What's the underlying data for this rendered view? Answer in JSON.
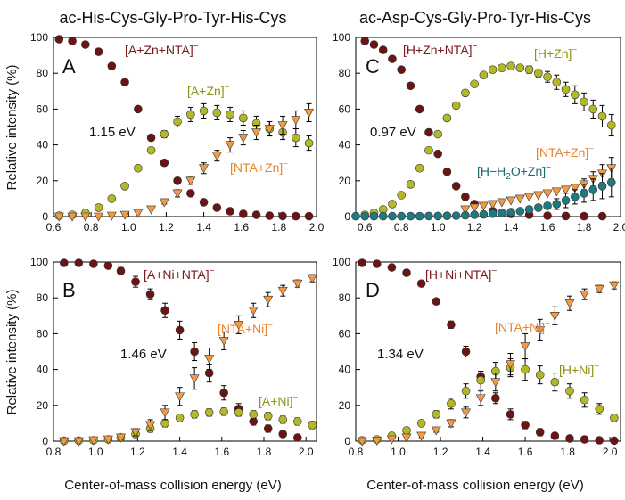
{
  "colors": {
    "series_a": "#6b1414",
    "series_b": "#b3b827",
    "series_c": "#f39a42",
    "series_d": "#1f7a80",
    "label_a": "#7a1818",
    "label_b": "#8c9212",
    "label_c": "#e8852c",
    "label_d": "#1a6a70"
  },
  "column_titles": [
    "ac-His-Cys-Gly-Pro-Tyr-His-Cys",
    "ac-Asp-Cys-Gly-Pro-Tyr-His-Cys"
  ],
  "shared_ylabel": "Relative intensity (%)",
  "shared_xlabel": "Center-of-mass collision energy (eV)",
  "chart_data": [
    {
      "type": "scatter",
      "panel_label": "A",
      "threshold_label": "1.15 eV",
      "xlim": [
        0.6,
        2.0
      ],
      "xticks": [
        "0.6",
        "0.8",
        "1.0",
        "1.2",
        "1.4",
        "1.6",
        "1.8",
        "2.0"
      ],
      "ylim": [
        0,
        100
      ],
      "yticks": [
        "0",
        "20",
        "40",
        "60",
        "80",
        "100"
      ],
      "series": [
        {
          "name": "[A+Zn+NTA]",
          "charge": "−",
          "marker": "circle",
          "color_key": "series_a",
          "x": [
            0.63,
            0.7,
            0.77,
            0.84,
            0.91,
            0.98,
            1.05,
            1.12,
            1.19,
            1.26,
            1.33,
            1.4,
            1.47,
            1.54,
            1.61,
            1.68,
            1.75,
            1.82,
            1.89,
            1.96
          ],
          "y": [
            99,
            98,
            96,
            92,
            84,
            75,
            60,
            44,
            30,
            20,
            13,
            8,
            5,
            3,
            1.5,
            1,
            0.5,
            0.3,
            0.2,
            0.2
          ],
          "err": [
            0,
            0,
            0,
            0,
            0,
            0,
            0,
            0,
            0,
            0,
            0,
            0,
            0,
            0,
            0,
            0,
            0,
            0,
            0,
            0
          ]
        },
        {
          "name": "[A+Zn]",
          "charge": "−",
          "marker": "circle",
          "color_key": "series_b",
          "x": [
            0.63,
            0.7,
            0.77,
            0.84,
            0.91,
            0.98,
            1.05,
            1.12,
            1.19,
            1.26,
            1.33,
            1.4,
            1.47,
            1.54,
            1.61,
            1.68,
            1.75,
            1.82,
            1.89,
            1.96
          ],
          "y": [
            0.5,
            1,
            2,
            5,
            10,
            17,
            27,
            37,
            46,
            53,
            57,
            59,
            58,
            57,
            55,
            52,
            49,
            47,
            44,
            41
          ],
          "err": [
            0,
            0,
            0,
            0,
            0,
            0,
            0,
            0,
            2,
            3,
            4,
            4,
            4,
            4,
            4,
            4,
            4,
            4,
            5,
            4
          ]
        },
        {
          "name": "[NTA+Zn]",
          "charge": "−",
          "marker": "triangle",
          "color_key": "series_c",
          "x": [
            0.63,
            0.7,
            0.77,
            0.84,
            0.91,
            0.98,
            1.05,
            1.12,
            1.19,
            1.26,
            1.33,
            1.4,
            1.47,
            1.54,
            1.61,
            1.68,
            1.75,
            1.82,
            1.89,
            1.96
          ],
          "y": [
            0,
            0,
            0,
            0,
            0.5,
            1,
            2,
            4,
            8,
            13,
            20,
            27,
            34,
            40,
            44,
            47,
            49,
            51,
            54,
            58
          ],
          "err": [
            0,
            0,
            0,
            0,
            0,
            0,
            0,
            0,
            1,
            2,
            2,
            3,
            3,
            4,
            4,
            4,
            4,
            5,
            5,
            5
          ]
        }
      ],
      "annotations": [
        {
          "text": "[A+Zn+NTA]",
          "sup": "−",
          "color_key": "label_a"
        },
        {
          "text": "[A+Zn]",
          "sup": "−",
          "color_key": "label_b"
        },
        {
          "text": "[NTA+Zn]",
          "sup": "−",
          "color_key": "label_c"
        }
      ]
    },
    {
      "type": "scatter",
      "panel_label": "C",
      "threshold_label": "0.97 eV",
      "xlim": [
        0.55,
        2.0
      ],
      "xticks": [
        "0.6",
        "0.8",
        "1.0",
        "1.2",
        "1.4",
        "1.6",
        "1.8",
        "2.0"
      ],
      "ylim": [
        0,
        100
      ],
      "yticks": [
        "0",
        "20",
        "40",
        "60",
        "80",
        "100"
      ],
      "series": [
        {
          "name": "[H+Zn+NTA]",
          "charge": "−",
          "marker": "circle",
          "color_key": "series_a",
          "x": [
            0.6,
            0.65,
            0.7,
            0.75,
            0.8,
            0.85,
            0.9,
            0.95,
            1.0,
            1.05,
            1.1,
            1.15,
            1.2,
            1.3,
            1.4,
            1.5,
            1.6,
            1.7,
            1.8,
            1.9
          ],
          "y": [
            98,
            96,
            93,
            88,
            82,
            73,
            60,
            47,
            35,
            25,
            17,
            11,
            7,
            3,
            1.5,
            1,
            0.5,
            0.3,
            0.2,
            0.2
          ],
          "err": [
            0,
            0,
            0,
            0,
            0,
            0,
            0,
            0,
            0,
            0,
            0,
            0,
            0,
            0,
            0,
            0,
            0,
            0,
            0,
            0
          ]
        },
        {
          "name": "[H+Zn]",
          "charge": "−",
          "marker": "circle",
          "color_key": "series_b",
          "x": [
            0.6,
            0.65,
            0.7,
            0.75,
            0.8,
            0.85,
            0.9,
            0.95,
            1.0,
            1.05,
            1.1,
            1.15,
            1.2,
            1.25,
            1.3,
            1.35,
            1.4,
            1.45,
            1.5,
            1.55,
            1.6,
            1.65,
            1.7,
            1.75,
            1.8,
            1.85,
            1.9,
            1.95
          ],
          "y": [
            1,
            2,
            4,
            7,
            12,
            18,
            27,
            37,
            46,
            55,
            62,
            69,
            74,
            79,
            82,
            83,
            84,
            83,
            82,
            80,
            78,
            75,
            71,
            68,
            64,
            60,
            56,
            51
          ],
          "err": [
            0,
            0,
            0,
            0,
            0,
            0,
            0,
            0,
            0,
            0,
            0,
            0,
            0,
            0,
            0,
            0,
            0,
            0,
            2,
            2,
            3,
            4,
            4,
            5,
            5,
            5,
            6,
            6
          ]
        },
        {
          "name": "[NTA+Zn]",
          "charge": "−",
          "marker": "triangle",
          "color_key": "series_c",
          "x": [
            1.15,
            1.2,
            1.25,
            1.3,
            1.35,
            1.4,
            1.45,
            1.5,
            1.55,
            1.6,
            1.65,
            1.7,
            1.75,
            1.8,
            1.85,
            1.9,
            1.95
          ],
          "y": [
            4,
            5,
            6,
            7,
            8,
            9,
            10,
            11,
            12,
            13,
            14,
            15,
            16,
            18,
            21,
            24,
            27
          ],
          "err": [
            0,
            0,
            0,
            0,
            0,
            0,
            0,
            0,
            0,
            0,
            0,
            0,
            0,
            3,
            4,
            5,
            6
          ]
        },
        {
          "name": "[H−H2O+Zn]",
          "charge": "−",
          "marker": "circle",
          "color_key": "series_d",
          "x": [
            0.55,
            0.6,
            0.65,
            0.7,
            0.75,
            0.8,
            0.85,
            0.9,
            0.95,
            1.0,
            1.05,
            1.1,
            1.15,
            1.2,
            1.25,
            1.3,
            1.35,
            1.4,
            1.45,
            1.5,
            1.55,
            1.6,
            1.65,
            1.7,
            1.75,
            1.8,
            1.85,
            1.9,
            1.95
          ],
          "y": [
            0.2,
            0.2,
            0.2,
            0.2,
            0.2,
            0.2,
            0.2,
            0.2,
            0.3,
            0.3,
            0.4,
            0.5,
            0.7,
            1,
            1.2,
            1.6,
            2,
            2.5,
            3,
            4,
            5,
            6,
            7,
            9,
            11,
            13,
            15,
            17,
            19
          ],
          "err": [
            0,
            0,
            0,
            0,
            0,
            0,
            0,
            0,
            0,
            0,
            0,
            0,
            0,
            0,
            0,
            0,
            0,
            0,
            0,
            0,
            0,
            0,
            3,
            4,
            4,
            5,
            6,
            7,
            8
          ]
        }
      ],
      "annotations": [
        {
          "text": "[H+Zn+NTA]",
          "sup": "−",
          "color_key": "label_a"
        },
        {
          "text": "[H+Zn]",
          "sup": "−",
          "color_key": "label_b"
        },
        {
          "text": "[NTA+Zn]",
          "sup": "−",
          "color_key": "label_c"
        },
        {
          "text": "[H−H",
          "sub": "2",
          "tail": "O+Zn]",
          "sup": "−",
          "color_key": "label_d"
        }
      ]
    },
    {
      "type": "scatter",
      "panel_label": "B",
      "threshold_label": "1.46 eV",
      "xlim": [
        0.8,
        2.05
      ],
      "xticks": [
        "0.8",
        "1.0",
        "1.2",
        "1.4",
        "1.6",
        "1.8",
        "2.0"
      ],
      "ylim": [
        0,
        100
      ],
      "yticks": [
        "0",
        "20",
        "40",
        "60",
        "80",
        "100"
      ],
      "series": [
        {
          "name": "[A+Ni+NTA]",
          "charge": "−",
          "marker": "circle",
          "color_key": "series_a",
          "x": [
            0.85,
            0.92,
            0.99,
            1.06,
            1.12,
            1.19,
            1.26,
            1.33,
            1.4,
            1.47,
            1.54,
            1.61,
            1.68,
            1.75,
            1.82,
            1.89,
            1.96
          ],
          "y": [
            99.5,
            99.5,
            99,
            98,
            95,
            89,
            82,
            73,
            62,
            50,
            38,
            27,
            18,
            11,
            7,
            4,
            2
          ],
          "err": [
            0,
            0,
            0,
            0,
            2,
            3,
            3,
            4,
            5,
            5,
            5,
            4,
            3,
            2,
            2,
            1,
            0
          ]
        },
        {
          "name": "[A+Ni]",
          "charge": "−",
          "marker": "circle",
          "color_key": "series_b",
          "x": [
            0.85,
            0.92,
            0.99,
            1.06,
            1.12,
            1.19,
            1.26,
            1.33,
            1.4,
            1.47,
            1.54,
            1.61,
            1.68,
            1.75,
            1.82,
            1.89,
            1.96,
            2.03
          ],
          "y": [
            0.2,
            0.3,
            0.5,
            1,
            2,
            4,
            7,
            10,
            13,
            15,
            16,
            16.5,
            16,
            15,
            14,
            12,
            11,
            9
          ],
          "err": [
            0,
            0,
            0,
            0,
            1,
            1,
            2,
            2,
            2,
            2,
            2,
            2,
            2,
            2,
            2,
            2,
            2,
            2
          ]
        },
        {
          "name": "[NTA+Ni]",
          "charge": "−",
          "marker": "triangle",
          "color_key": "series_c",
          "x": [
            0.85,
            0.92,
            0.99,
            1.06,
            1.12,
            1.19,
            1.26,
            1.33,
            1.4,
            1.47,
            1.54,
            1.61,
            1.68,
            1.75,
            1.82,
            1.89,
            1.96,
            2.03
          ],
          "y": [
            0,
            0,
            0.5,
            1,
            2,
            5,
            9,
            16,
            25,
            35,
            46,
            56,
            65,
            73,
            79,
            84,
            88,
            91
          ],
          "err": [
            0,
            0,
            0,
            0,
            1,
            2,
            3,
            4,
            5,
            6,
            6,
            5,
            5,
            4,
            4,
            3,
            2,
            2
          ]
        }
      ],
      "annotations": [
        {
          "text": "[A+Ni+NTA]",
          "sup": "−",
          "color_key": "label_a"
        },
        {
          "text": "[NTA+Ni]",
          "sup": "−",
          "color_key": "label_c"
        },
        {
          "text": "[A+Ni]",
          "sup": "−",
          "color_key": "label_b"
        }
      ]
    },
    {
      "type": "scatter",
      "panel_label": "D",
      "threshold_label": "1.34 eV",
      "xlim": [
        0.8,
        2.05
      ],
      "xticks": [
        "0.8",
        "1.0",
        "1.2",
        "1.4",
        "1.6",
        "1.8",
        "2.0"
      ],
      "ylim": [
        0,
        100
      ],
      "yticks": [
        "0",
        "20",
        "40",
        "60",
        "80",
        "100"
      ],
      "series": [
        {
          "name": "[H+Ni+NTA]",
          "charge": "−",
          "marker": "circle",
          "color_key": "series_a",
          "x": [
            0.83,
            0.9,
            0.97,
            1.04,
            1.11,
            1.18,
            1.25,
            1.32,
            1.39,
            1.46,
            1.53,
            1.6,
            1.67,
            1.74,
            1.81,
            1.88,
            1.95,
            2.02
          ],
          "y": [
            99.5,
            99,
            97,
            94,
            88,
            78,
            65,
            50,
            36,
            24,
            15,
            9,
            5,
            3,
            1.5,
            1,
            0.5,
            0.3
          ],
          "err": [
            0,
            0,
            0,
            0,
            0,
            0,
            2,
            3,
            3,
            3,
            3,
            2,
            2,
            1,
            0,
            0,
            0,
            0
          ]
        },
        {
          "name": "[H+Ni]",
          "charge": "−",
          "marker": "circle",
          "color_key": "series_b",
          "x": [
            0.83,
            0.9,
            0.97,
            1.04,
            1.11,
            1.18,
            1.25,
            1.32,
            1.39,
            1.46,
            1.53,
            1.6,
            1.67,
            1.74,
            1.81,
            1.88,
            1.95,
            2.02
          ],
          "y": [
            0.5,
            1,
            3,
            6,
            10,
            15,
            21,
            28,
            34,
            39,
            41,
            40,
            37,
            33,
            28,
            23,
            18,
            13
          ],
          "err": [
            0,
            0,
            0,
            0,
            1,
            2,
            3,
            4,
            5,
            5,
            5,
            6,
            5,
            5,
            4,
            4,
            3,
            2
          ]
        },
        {
          "name": "[NTA+Ni]",
          "charge": "−",
          "marker": "triangle",
          "color_key": "series_c",
          "x": [
            0.83,
            0.9,
            0.97,
            1.04,
            1.11,
            1.18,
            1.25,
            1.32,
            1.39,
            1.46,
            1.53,
            1.6,
            1.67,
            1.74,
            1.81,
            1.88,
            1.95,
            2.02
          ],
          "y": [
            0,
            0.3,
            1,
            2,
            3,
            6,
            10,
            16,
            24,
            33,
            43,
            53,
            62,
            70,
            77,
            82,
            85,
            87
          ],
          "err": [
            0,
            0,
            0,
            0,
            1,
            1,
            2,
            3,
            4,
            5,
            6,
            7,
            6,
            5,
            4,
            3,
            2,
            2
          ]
        }
      ],
      "annotations": [
        {
          "text": "[H+Ni+NTA]",
          "sup": "−",
          "color_key": "label_a"
        },
        {
          "text": "[NTA+Ni]",
          "sup": "−",
          "color_key": "label_c"
        },
        {
          "text": "[H+Ni]",
          "sup": "−",
          "color_key": "label_b"
        }
      ]
    }
  ]
}
